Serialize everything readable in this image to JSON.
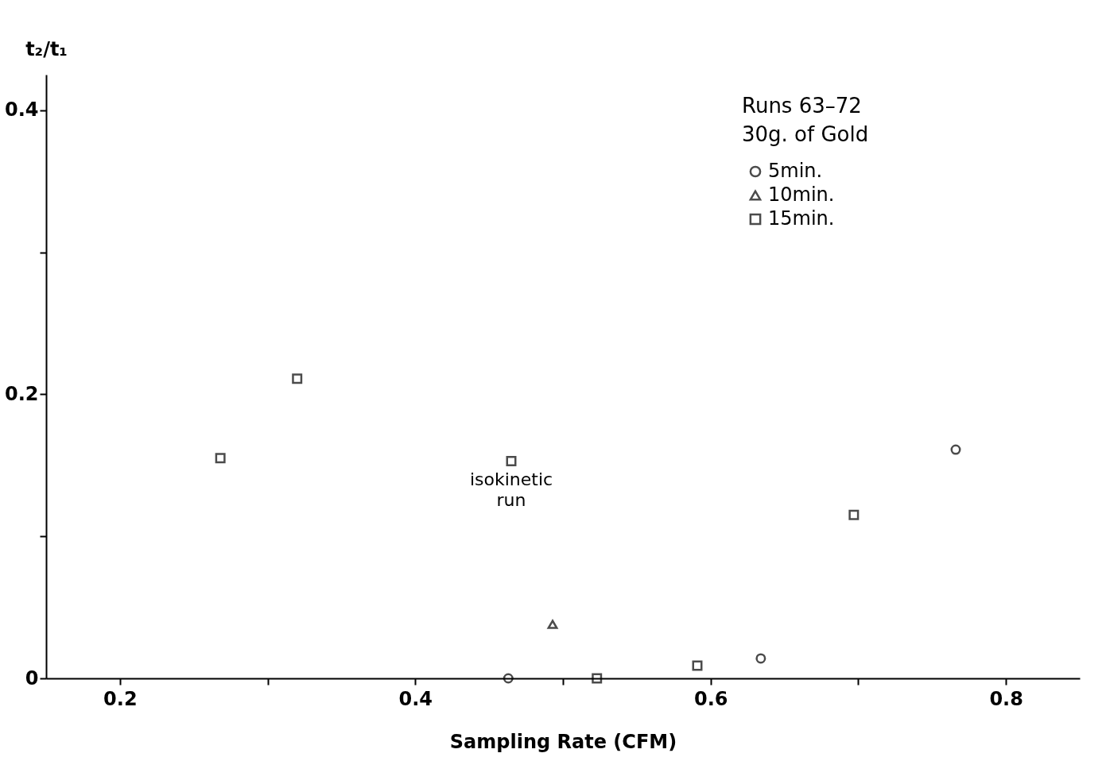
{
  "chart_data": {
    "type": "scatter",
    "xlabel": "Sampling Rate (CFM)",
    "ylabel": "t₂/t₁",
    "xlim": [
      0.15,
      0.85
    ],
    "ylim": [
      0,
      0.425
    ],
    "xticks": [
      0.2,
      {
        "value": 0.3,
        "label": null
      },
      0.4,
      {
        "value": 0.5,
        "label": null
      },
      0.6,
      {
        "value": 0.7,
        "label": null
      },
      0.8
    ],
    "yticks": [
      0,
      {
        "value": 0.1,
        "label": null
      },
      0.2,
      {
        "value": 0.3,
        "label": null
      },
      0.4
    ],
    "grid": false,
    "legend": "top right",
    "annotations": [
      "Runs 63–72",
      "30g. of Gold",
      {
        "text": "isokinetic run",
        "x": 0.465,
        "y": 0.153
      }
    ],
    "series": [
      {
        "name": "5min.",
        "color": "#000000",
        "marker": "circle",
        "x": [
          0.463,
          0.634,
          0.766
        ],
        "values": [
          0,
          0.014,
          0.161
        ]
      },
      {
        "name": "10min.",
        "color": "#000000",
        "marker": "triangle",
        "x": [
          0.493
        ],
        "values": [
          0.038
        ]
      },
      {
        "name": "15min.",
        "color": "#000000",
        "marker": "square",
        "x": [
          0.268,
          0.32,
          0.465,
          0.523,
          0.591,
          0.697
        ],
        "values": [
          0.155,
          0.211,
          0.153,
          0,
          0.009,
          0.115
        ]
      }
    ]
  }
}
